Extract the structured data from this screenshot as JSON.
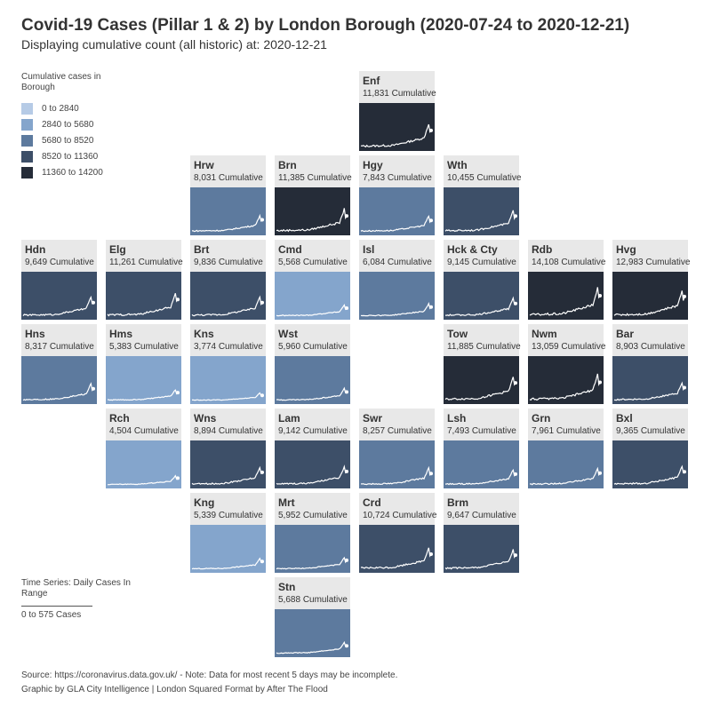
{
  "header": {
    "title": "Covid-19 Cases (Pillar 1 & 2) by London Borough (2020-07-24 to 2020-12-21)",
    "subtitle": "Displaying cumulative count (all historic) at: 2020-12-21"
  },
  "legend": {
    "title": "Cumulative cases in Borough",
    "bins": [
      {
        "label": "0 to 2840",
        "color": "#b6cbe6"
      },
      {
        "label": "2840 to 5680",
        "color": "#84a5cc"
      },
      {
        "label": "5680 to 8520",
        "color": "#5d7a9e"
      },
      {
        "label": "8520 to 11360",
        "color": "#3d4f68"
      },
      {
        "label": "11360 to 14200",
        "color": "#252c38"
      }
    ]
  },
  "ts_legend": {
    "title": "Time Series: Daily Cases In Range",
    "range": "0 to 575 Cases"
  },
  "chart_data": {
    "type": "tile-grid",
    "count_suffix": "Cumulative",
    "series_range": [
      0,
      575
    ],
    "tiles": [
      {
        "abbr": "Enf",
        "count": "11,831",
        "cum": 11831,
        "col": 4,
        "row": 0
      },
      {
        "abbr": "Hrw",
        "count": "8,031",
        "cum": 8031,
        "col": 2,
        "row": 1
      },
      {
        "abbr": "Brn",
        "count": "11,385",
        "cum": 11385,
        "col": 3,
        "row": 1
      },
      {
        "abbr": "Hgy",
        "count": "7,843",
        "cum": 7843,
        "col": 4,
        "row": 1
      },
      {
        "abbr": "Wth",
        "count": "10,455",
        "cum": 10455,
        "col": 5,
        "row": 1
      },
      {
        "abbr": "Hdn",
        "count": "9,649",
        "cum": 9649,
        "col": 0,
        "row": 2
      },
      {
        "abbr": "Elg",
        "count": "11,261",
        "cum": 11261,
        "col": 1,
        "row": 2
      },
      {
        "abbr": "Brt",
        "count": "9,836",
        "cum": 9836,
        "col": 2,
        "row": 2
      },
      {
        "abbr": "Cmd",
        "count": "5,568",
        "cum": 5568,
        "col": 3,
        "row": 2
      },
      {
        "abbr": "Isl",
        "count": "6,084",
        "cum": 6084,
        "col": 4,
        "row": 2
      },
      {
        "abbr": "Hck & Cty",
        "count": "9,145",
        "cum": 9145,
        "col": 5,
        "row": 2
      },
      {
        "abbr": "Rdb",
        "count": "14,108",
        "cum": 14108,
        "col": 6,
        "row": 2
      },
      {
        "abbr": "Hvg",
        "count": "12,983",
        "cum": 12983,
        "col": 7,
        "row": 2
      },
      {
        "abbr": "Hns",
        "count": "8,317",
        "cum": 8317,
        "col": 0,
        "row": 3
      },
      {
        "abbr": "Hms",
        "count": "5,383",
        "cum": 5383,
        "col": 1,
        "row": 3
      },
      {
        "abbr": "Kns",
        "count": "3,774",
        "cum": 3774,
        "col": 2,
        "row": 3
      },
      {
        "abbr": "Wst",
        "count": "5,960",
        "cum": 5960,
        "col": 3,
        "row": 3
      },
      {
        "abbr": "Tow",
        "count": "11,885",
        "cum": 11885,
        "col": 5,
        "row": 3
      },
      {
        "abbr": "Nwm",
        "count": "13,059",
        "cum": 13059,
        "col": 6,
        "row": 3
      },
      {
        "abbr": "Bar",
        "count": "8,903",
        "cum": 8903,
        "col": 7,
        "row": 3
      },
      {
        "abbr": "Rch",
        "count": "4,504",
        "cum": 4504,
        "col": 1,
        "row": 4
      },
      {
        "abbr": "Wns",
        "count": "8,894",
        "cum": 8894,
        "col": 2,
        "row": 4
      },
      {
        "abbr": "Lam",
        "count": "9,142",
        "cum": 9142,
        "col": 3,
        "row": 4
      },
      {
        "abbr": "Swr",
        "count": "8,257",
        "cum": 8257,
        "col": 4,
        "row": 4
      },
      {
        "abbr": "Lsh",
        "count": "7,493",
        "cum": 7493,
        "col": 5,
        "row": 4
      },
      {
        "abbr": "Grn",
        "count": "7,961",
        "cum": 7961,
        "col": 6,
        "row": 4
      },
      {
        "abbr": "Bxl",
        "count": "9,365",
        "cum": 9365,
        "col": 7,
        "row": 4
      },
      {
        "abbr": "Kng",
        "count": "5,339",
        "cum": 5339,
        "col": 2,
        "row": 5
      },
      {
        "abbr": "Mrt",
        "count": "5,952",
        "cum": 5952,
        "col": 3,
        "row": 5
      },
      {
        "abbr": "Crd",
        "count": "10,724",
        "cum": 10724,
        "col": 4,
        "row": 5
      },
      {
        "abbr": "Brm",
        "count": "9,647",
        "cum": 9647,
        "col": 5,
        "row": 5
      },
      {
        "abbr": "Stn",
        "count": "5,688",
        "cum": 5688,
        "col": 3,
        "row": 6
      }
    ]
  },
  "footer": {
    "source": "Source: https://coronavirus.data.gov.uk/ - Note: Data for most recent 5 days may be incomplete.",
    "credit": "Graphic by GLA City Intelligence | London Squared Format by After The Flood"
  }
}
